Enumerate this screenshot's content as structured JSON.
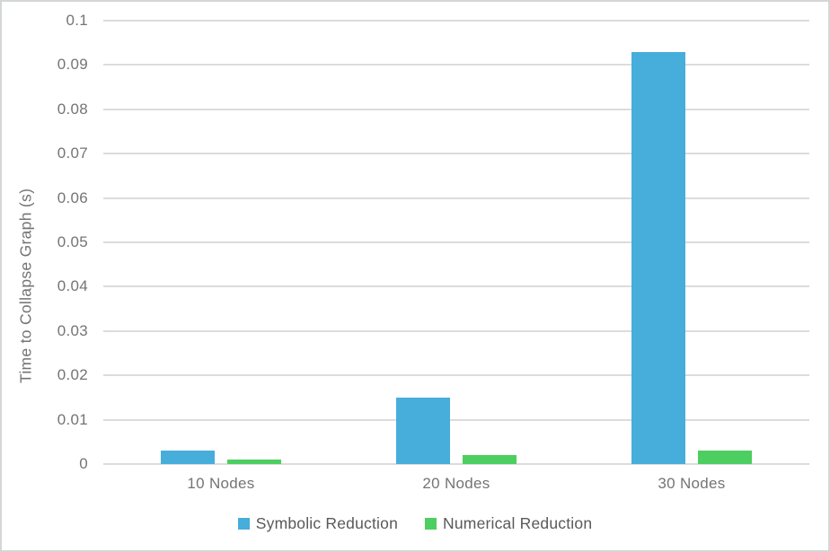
{
  "chart_data": {
    "type": "bar",
    "categories": [
      "10 Nodes",
      "20 Nodes",
      "30 Nodes"
    ],
    "series": [
      {
        "name": "Symbolic Reduction",
        "color": "#47ADDB",
        "values": [
          0.003,
          0.015,
          0.093
        ]
      },
      {
        "name": "Numerical Reduction",
        "color": "#4DCE60",
        "values": [
          0.001,
          0.002,
          0.003
        ]
      }
    ],
    "xlabel": "",
    "ylabel": "Time to Collapse Graph (s)",
    "ylim": [
      0,
      0.1
    ],
    "ytick_labels": [
      "0",
      "0.01",
      "0.02",
      "0.03",
      "0.04",
      "0.05",
      "0.06",
      "0.07",
      "0.08",
      "0.09",
      "0.1"
    ],
    "grid": true,
    "legend_position": "bottom"
  },
  "colors": {
    "background": "#ffffff",
    "frame_border": "#d3d7d8",
    "gridline": "#dcdcdc",
    "axis_text": "#747474",
    "legend_text": "#595959"
  }
}
